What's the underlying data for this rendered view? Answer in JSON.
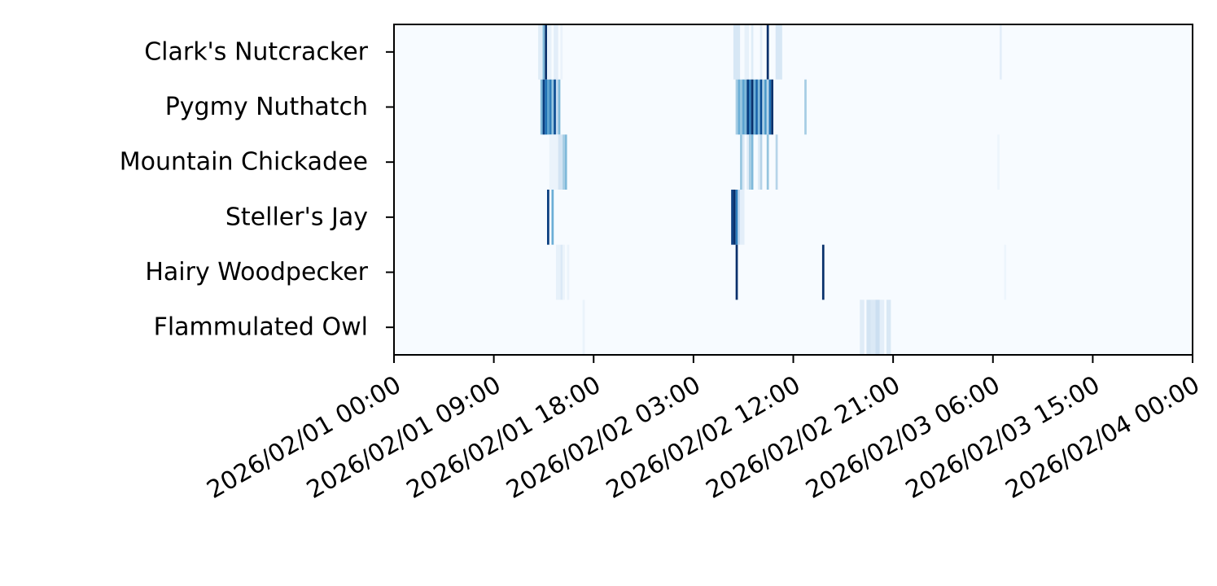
{
  "chart_data": {
    "type": "heatmap",
    "title": "",
    "xlabel": "",
    "ylabel": "",
    "colormap": "Blues",
    "colors": {
      "low": "#f7fbff",
      "high": "#08306b",
      "axis": "#000000",
      "background": "#ffffff"
    },
    "y_categories": [
      "Clark's Nutcracker",
      "Pygmy Nuthatch",
      "Mountain Chickadee",
      "Steller's Jay",
      "Hairy Woodpecker",
      "Flammulated Owl"
    ],
    "x_range": [
      "2026/02/01 00:00",
      "2026/02/04 00:00"
    ],
    "x_tick_labels": [
      "2026/02/01 00:00",
      "2026/02/01 09:00",
      "2026/02/01 18:00",
      "2026/02/02 03:00",
      "2026/02/02 12:00",
      "2026/02/02 21:00",
      "2026/02/03 06:00",
      "2026/02/03 15:00",
      "2026/02/04 00:00"
    ],
    "x_tick_hours": [
      0,
      9,
      18,
      27,
      36,
      45,
      54,
      63,
      72
    ],
    "bin_minutes": 12,
    "intensity_scale": [
      0,
      1
    ],
    "cells": [
      {
        "series": "Clark's Nutcracker",
        "start": "2026/02/01 13:00",
        "end": "2026/02/01 13:24",
        "intensity": 0.12
      },
      {
        "series": "Clark's Nutcracker",
        "start": "2026/02/01 13:24",
        "end": "2026/02/01 13:36",
        "intensity": 0.45
      },
      {
        "series": "Clark's Nutcracker",
        "start": "2026/02/01 13:36",
        "end": "2026/02/01 13:48",
        "intensity": 1.0
      },
      {
        "series": "Clark's Nutcracker",
        "start": "2026/02/01 13:48",
        "end": "2026/02/01 14:12",
        "intensity": 0.08
      },
      {
        "series": "Clark's Nutcracker",
        "start": "2026/02/01 14:24",
        "end": "2026/02/01 14:48",
        "intensity": 0.1
      },
      {
        "series": "Clark's Nutcracker",
        "start": "2026/02/01 15:00",
        "end": "2026/02/01 15:12",
        "intensity": 0.06
      },
      {
        "series": "Clark's Nutcracker",
        "start": "2026/02/02 06:36",
        "end": "2026/02/02 07:12",
        "intensity": 0.16
      },
      {
        "series": "Clark's Nutcracker",
        "start": "2026/02/02 07:36",
        "end": "2026/02/02 08:00",
        "intensity": 0.08
      },
      {
        "series": "Clark's Nutcracker",
        "start": "2026/02/02 08:12",
        "end": "2026/02/02 08:24",
        "intensity": 0.12
      },
      {
        "series": "Clark's Nutcracker",
        "start": "2026/02/02 09:00",
        "end": "2026/02/02 09:12",
        "intensity": 0.1
      },
      {
        "series": "Clark's Nutcracker",
        "start": "2026/02/02 09:36",
        "end": "2026/02/02 09:48",
        "intensity": 1.0
      },
      {
        "series": "Clark's Nutcracker",
        "start": "2026/02/02 10:24",
        "end": "2026/02/02 11:00",
        "intensity": 0.16
      },
      {
        "series": "Clark's Nutcracker",
        "start": "2026/02/03 06:36",
        "end": "2026/02/03 06:48",
        "intensity": 0.1
      },
      {
        "series": "Pygmy Nuthatch",
        "start": "2026/02/01 13:12",
        "end": "2026/02/01 13:24",
        "intensity": 0.45
      },
      {
        "series": "Pygmy Nuthatch",
        "start": "2026/02/01 13:24",
        "end": "2026/02/01 13:36",
        "intensity": 0.95
      },
      {
        "series": "Pygmy Nuthatch",
        "start": "2026/02/01 13:36",
        "end": "2026/02/01 13:48",
        "intensity": 0.75
      },
      {
        "series": "Pygmy Nuthatch",
        "start": "2026/02/01 13:48",
        "end": "2026/02/01 14:00",
        "intensity": 0.55
      },
      {
        "series": "Pygmy Nuthatch",
        "start": "2026/02/01 14:00",
        "end": "2026/02/01 14:12",
        "intensity": 0.7
      },
      {
        "series": "Pygmy Nuthatch",
        "start": "2026/02/01 14:12",
        "end": "2026/02/01 14:24",
        "intensity": 0.4
      },
      {
        "series": "Pygmy Nuthatch",
        "start": "2026/02/01 14:24",
        "end": "2026/02/01 14:36",
        "intensity": 0.9
      },
      {
        "series": "Pygmy Nuthatch",
        "start": "2026/02/01 14:36",
        "end": "2026/02/01 14:48",
        "intensity": 0.25
      },
      {
        "series": "Pygmy Nuthatch",
        "start": "2026/02/01 14:48",
        "end": "2026/02/01 15:00",
        "intensity": 0.45
      },
      {
        "series": "Pygmy Nuthatch",
        "start": "2026/02/02 06:48",
        "end": "2026/02/02 07:00",
        "intensity": 0.35
      },
      {
        "series": "Pygmy Nuthatch",
        "start": "2026/02/02 07:00",
        "end": "2026/02/02 07:12",
        "intensity": 0.5
      },
      {
        "series": "Pygmy Nuthatch",
        "start": "2026/02/02 07:12",
        "end": "2026/02/02 07:24",
        "intensity": 0.4
      },
      {
        "series": "Pygmy Nuthatch",
        "start": "2026/02/02 07:24",
        "end": "2026/02/02 07:36",
        "intensity": 0.55
      },
      {
        "series": "Pygmy Nuthatch",
        "start": "2026/02/02 07:36",
        "end": "2026/02/02 07:48",
        "intensity": 0.45
      },
      {
        "series": "Pygmy Nuthatch",
        "start": "2026/02/02 07:48",
        "end": "2026/02/02 08:00",
        "intensity": 0.95
      },
      {
        "series": "Pygmy Nuthatch",
        "start": "2026/02/02 08:00",
        "end": "2026/02/02 08:12",
        "intensity": 0.7
      },
      {
        "series": "Pygmy Nuthatch",
        "start": "2026/02/02 08:12",
        "end": "2026/02/02 08:24",
        "intensity": 1.0
      },
      {
        "series": "Pygmy Nuthatch",
        "start": "2026/02/02 08:24",
        "end": "2026/02/02 08:36",
        "intensity": 0.5
      },
      {
        "series": "Pygmy Nuthatch",
        "start": "2026/02/02 08:36",
        "end": "2026/02/02 08:48",
        "intensity": 0.8
      },
      {
        "series": "Pygmy Nuthatch",
        "start": "2026/02/02 08:48",
        "end": "2026/02/02 09:00",
        "intensity": 0.45
      },
      {
        "series": "Pygmy Nuthatch",
        "start": "2026/02/02 09:00",
        "end": "2026/02/02 09:12",
        "intensity": 0.9
      },
      {
        "series": "Pygmy Nuthatch",
        "start": "2026/02/02 09:12",
        "end": "2026/02/02 09:24",
        "intensity": 0.35
      },
      {
        "series": "Pygmy Nuthatch",
        "start": "2026/02/02 09:24",
        "end": "2026/02/02 09:36",
        "intensity": 0.6
      },
      {
        "series": "Pygmy Nuthatch",
        "start": "2026/02/02 09:36",
        "end": "2026/02/02 09:48",
        "intensity": 0.3
      },
      {
        "series": "Pygmy Nuthatch",
        "start": "2026/02/02 09:48",
        "end": "2026/02/02 10:00",
        "intensity": 0.75
      },
      {
        "series": "Pygmy Nuthatch",
        "start": "2026/02/02 10:00",
        "end": "2026/02/02 10:12",
        "intensity": 1.0
      },
      {
        "series": "Pygmy Nuthatch",
        "start": "2026/02/02 13:00",
        "end": "2026/02/02 13:12",
        "intensity": 0.35
      },
      {
        "series": "Mountain Chickadee",
        "start": "2026/02/01 14:00",
        "end": "2026/02/01 14:48",
        "intensity": 0.06
      },
      {
        "series": "Mountain Chickadee",
        "start": "2026/02/01 14:48",
        "end": "2026/02/01 15:12",
        "intensity": 0.18
      },
      {
        "series": "Mountain Chickadee",
        "start": "2026/02/01 15:12",
        "end": "2026/02/01 15:24",
        "intensity": 0.35
      },
      {
        "series": "Mountain Chickadee",
        "start": "2026/02/01 15:24",
        "end": "2026/02/01 15:36",
        "intensity": 0.45
      },
      {
        "series": "Mountain Chickadee",
        "start": "2026/02/02 07:12",
        "end": "2026/02/02 07:24",
        "intensity": 0.4
      },
      {
        "series": "Mountain Chickadee",
        "start": "2026/02/02 07:24",
        "end": "2026/02/02 07:36",
        "intensity": 0.15
      },
      {
        "series": "Mountain Chickadee",
        "start": "2026/02/02 07:48",
        "end": "2026/02/02 08:00",
        "intensity": 0.12
      },
      {
        "series": "Mountain Chickadee",
        "start": "2026/02/02 08:00",
        "end": "2026/02/02 08:12",
        "intensity": 0.35
      },
      {
        "series": "Mountain Chickadee",
        "start": "2026/02/02 08:12",
        "end": "2026/02/02 08:24",
        "intensity": 0.45
      },
      {
        "series": "Mountain Chickadee",
        "start": "2026/02/02 08:48",
        "end": "2026/02/02 09:00",
        "intensity": 0.12
      },
      {
        "series": "Mountain Chickadee",
        "start": "2026/02/02 09:00",
        "end": "2026/02/02 09:12",
        "intensity": 0.3
      },
      {
        "series": "Mountain Chickadee",
        "start": "2026/02/02 09:36",
        "end": "2026/02/02 09:48",
        "intensity": 0.4
      },
      {
        "series": "Mountain Chickadee",
        "start": "2026/02/02 10:24",
        "end": "2026/02/02 10:36",
        "intensity": 0.3
      },
      {
        "series": "Mountain Chickadee",
        "start": "2026/02/03 06:24",
        "end": "2026/02/03 06:36",
        "intensity": 0.05
      },
      {
        "series": "Steller's Jay",
        "start": "2026/02/01 13:48",
        "end": "2026/02/01 14:00",
        "intensity": 0.95
      },
      {
        "series": "Steller's Jay",
        "start": "2026/02/01 14:12",
        "end": "2026/02/01 14:24",
        "intensity": 0.5
      },
      {
        "series": "Steller's Jay",
        "start": "2026/02/02 06:24",
        "end": "2026/02/02 06:36",
        "intensity": 0.95
      },
      {
        "series": "Steller's Jay",
        "start": "2026/02/02 06:36",
        "end": "2026/02/02 06:48",
        "intensity": 1.0
      },
      {
        "series": "Steller's Jay",
        "start": "2026/02/02 06:48",
        "end": "2026/02/02 07:00",
        "intensity": 0.7
      },
      {
        "series": "Steller's Jay",
        "start": "2026/02/02 07:00",
        "end": "2026/02/02 07:12",
        "intensity": 0.25
      },
      {
        "series": "Steller's Jay",
        "start": "2026/02/02 07:12",
        "end": "2026/02/02 07:36",
        "intensity": 0.1
      },
      {
        "series": "Hairy Woodpecker",
        "start": "2026/02/01 14:36",
        "end": "2026/02/01 15:00",
        "intensity": 0.08
      },
      {
        "series": "Hairy Woodpecker",
        "start": "2026/02/01 15:00",
        "end": "2026/02/01 15:12",
        "intensity": 0.14
      },
      {
        "series": "Hairy Woodpecker",
        "start": "2026/02/01 15:12",
        "end": "2026/02/01 15:24",
        "intensity": 0.06
      },
      {
        "series": "Hairy Woodpecker",
        "start": "2026/02/01 15:36",
        "end": "2026/02/01 15:48",
        "intensity": 0.06
      },
      {
        "series": "Hairy Woodpecker",
        "start": "2026/02/02 06:48",
        "end": "2026/02/02 07:00",
        "intensity": 1.0
      },
      {
        "series": "Hairy Woodpecker",
        "start": "2026/02/02 14:36",
        "end": "2026/02/02 14:48",
        "intensity": 1.0
      },
      {
        "series": "Hairy Woodpecker",
        "start": "2026/02/03 07:00",
        "end": "2026/02/03 07:12",
        "intensity": 0.05
      },
      {
        "series": "Flammulated Owl",
        "start": "2026/02/01 17:00",
        "end": "2026/02/01 17:12",
        "intensity": 0.06
      },
      {
        "series": "Flammulated Owl",
        "start": "2026/02/02 18:00",
        "end": "2026/02/02 18:24",
        "intensity": 0.12
      },
      {
        "series": "Flammulated Owl",
        "start": "2026/02/02 18:36",
        "end": "2026/02/02 19:00",
        "intensity": 0.18
      },
      {
        "series": "Flammulated Owl",
        "start": "2026/02/02 19:00",
        "end": "2026/02/02 19:24",
        "intensity": 0.14
      },
      {
        "series": "Flammulated Owl",
        "start": "2026/02/02 19:24",
        "end": "2026/02/02 19:48",
        "intensity": 0.22
      },
      {
        "series": "Flammulated Owl",
        "start": "2026/02/02 19:48",
        "end": "2026/02/02 20:12",
        "intensity": 0.1
      },
      {
        "series": "Flammulated Owl",
        "start": "2026/02/02 20:24",
        "end": "2026/02/02 20:48",
        "intensity": 0.15
      }
    ]
  }
}
